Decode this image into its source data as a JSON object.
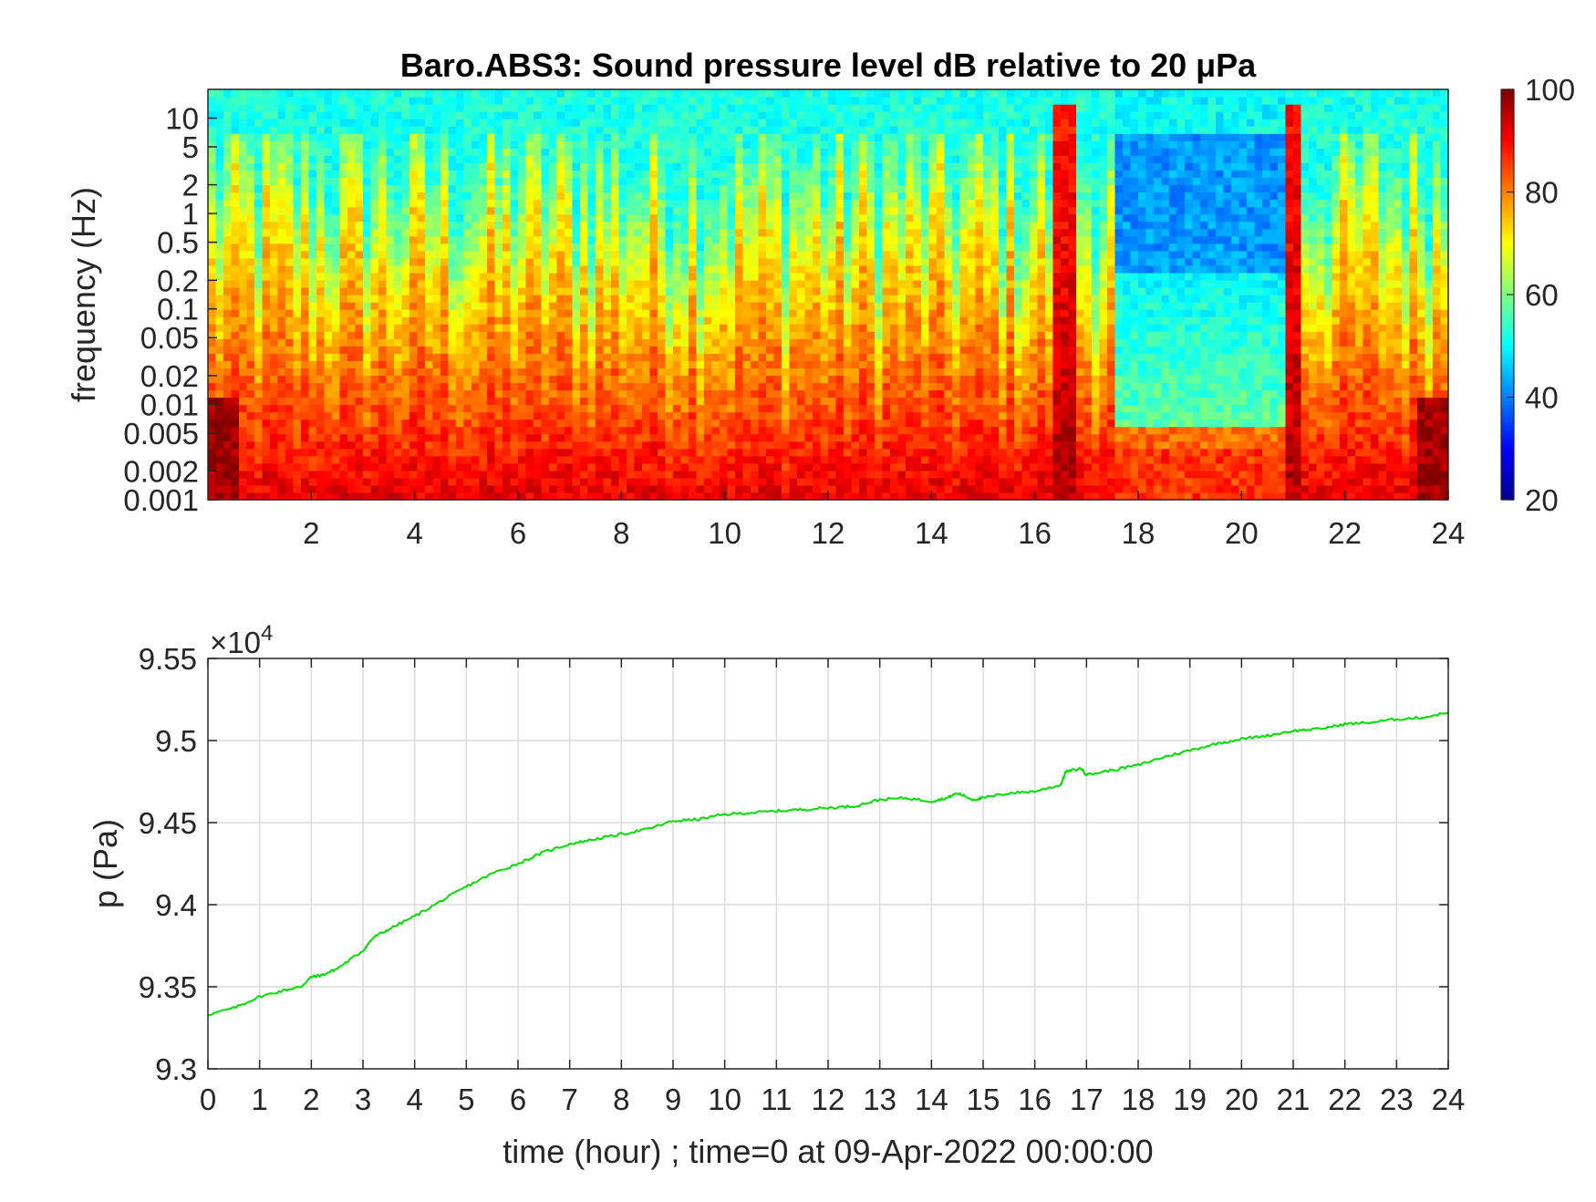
{
  "chart_data": [
    {
      "type": "heatmap",
      "title": "Baro.ABS3: Sound pressure level dB relative to 20 μPa",
      "xlabel": "",
      "ylabel": "frequency (Hz)",
      "xlim": [
        0,
        24
      ],
      "x_ticks": [
        2,
        4,
        6,
        8,
        10,
        12,
        14,
        16,
        18,
        20,
        22,
        24
      ],
      "y_scale": "log",
      "ylim": [
        0.001,
        20
      ],
      "y_ticks": [
        0.001,
        0.002,
        0.005,
        0.01,
        0.02,
        0.05,
        0.1,
        0.2,
        0.5,
        1,
        2,
        5,
        10
      ],
      "y_tick_labels": [
        "0.001",
        "0.002",
        "0.005",
        "0.01",
        "0.02",
        "0.05",
        "0.1",
        "0.2",
        "0.5",
        "1",
        "2",
        "5",
        "10"
      ],
      "colormap": "jet",
      "colorbar": {
        "range": [
          20,
          100
        ],
        "ticks": [
          20,
          40,
          60,
          80,
          100
        ]
      },
      "level_summary": {
        "high_freq_band_above_5Hz_dB": 50,
        "active_period_hours": [
          0,
          17
        ],
        "quiet_period_hours": [
          17.5,
          20.8
        ],
        "quiet_period_high_freq_dB": 40,
        "transient_bursts_hours": [
          16.6,
          21
        ],
        "low_freq_below_0.01Hz_dB": 88
      }
    },
    {
      "type": "line",
      "title": "",
      "xlabel": "time (hour) ; time=0 at 09-Apr-2022 00:00:00",
      "ylabel": "p (Pa)",
      "y_exponent_label": "×10",
      "y_exponent": "4",
      "xlim": [
        0,
        24
      ],
      "ylim": [
        9.3,
        9.55
      ],
      "x_ticks": [
        0,
        1,
        2,
        3,
        4,
        5,
        6,
        7,
        8,
        9,
        10,
        11,
        12,
        13,
        14,
        15,
        16,
        17,
        18,
        19,
        20,
        21,
        22,
        23,
        24
      ],
      "y_ticks": [
        9.3,
        9.35,
        9.4,
        9.45,
        9.5,
        9.55
      ],
      "y_tick_labels": [
        "9.3",
        "9.35",
        "9.4",
        "9.45",
        "9.5",
        "9.55"
      ],
      "grid": true,
      "line_color": "#00dd00",
      "series": [
        {
          "x": [
            0,
            0.5,
            1,
            1.5,
            1.8,
            2,
            2.2,
            2.5,
            3,
            3.2,
            3.5,
            4,
            4.5,
            5,
            5.5,
            6,
            6.5,
            7,
            7.5,
            8,
            8.5,
            9,
            9.5,
            10,
            10.5,
            11,
            11.5,
            12,
            12.5,
            13,
            13.5,
            14,
            14.3,
            14.5,
            14.8,
            15,
            15.5,
            16,
            16.5,
            16.6,
            16.9,
            17,
            17.5,
            18,
            18.5,
            19,
            19.5,
            20,
            20.5,
            21,
            21.5,
            22,
            22.5,
            23,
            23.5,
            24
          ],
          "y": [
            9.333,
            9.337,
            9.344,
            9.348,
            9.35,
            9.356,
            9.357,
            9.361,
            9.372,
            9.38,
            9.385,
            9.393,
            9.402,
            9.411,
            9.419,
            9.425,
            9.432,
            9.437,
            9.44,
            9.443,
            9.446,
            9.451,
            9.452,
            9.455,
            9.456,
            9.457,
            9.458,
            9.459,
            9.46,
            9.464,
            9.465,
            9.463,
            9.465,
            9.468,
            9.464,
            9.465,
            9.468,
            9.469,
            9.473,
            9.481,
            9.483,
            9.479,
            9.482,
            9.485,
            9.49,
            9.494,
            9.498,
            9.501,
            9.503,
            9.506,
            9.507,
            9.51,
            9.511,
            9.513,
            9.514,
            9.517
          ]
        }
      ]
    }
  ]
}
